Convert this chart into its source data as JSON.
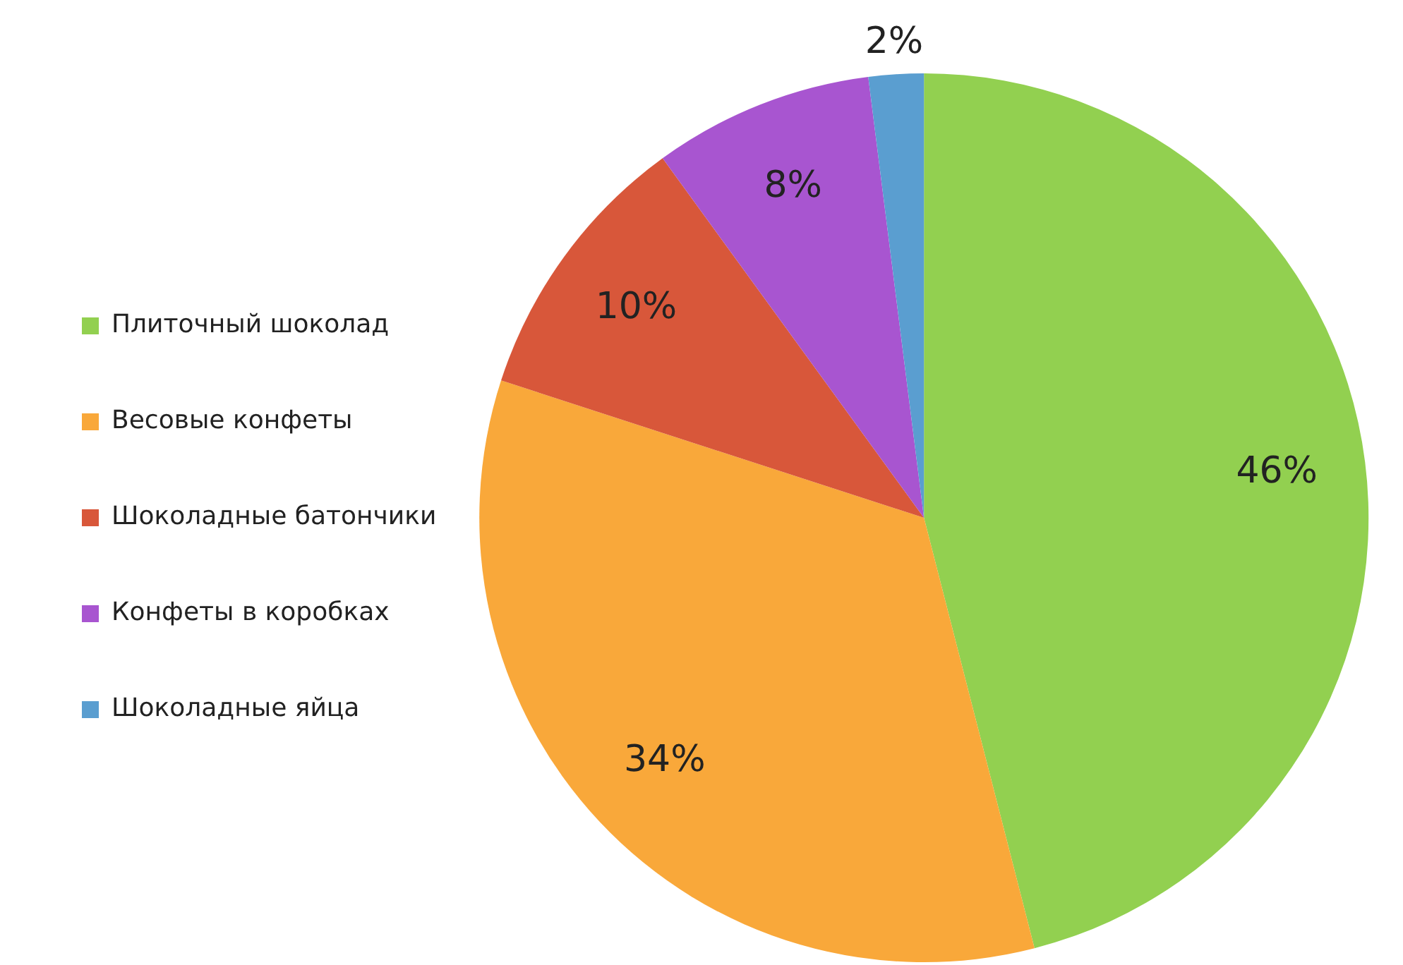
{
  "chart_data": {
    "type": "pie",
    "categories": [
      "Плиточный шоколад",
      "Весовые конфеты",
      "Шоколадные батончики",
      "Конфеты в коробках",
      "Шоколадные яйца"
    ],
    "values": [
      46,
      34,
      10,
      8,
      2
    ],
    "colors": [
      "#92d050",
      "#f9a83a",
      "#d8573a",
      "#a855d0",
      "#5a9ed0"
    ],
    "value_labels": [
      "46%",
      "34%",
      "10%",
      "8%",
      "2%"
    ],
    "legend": "left"
  }
}
